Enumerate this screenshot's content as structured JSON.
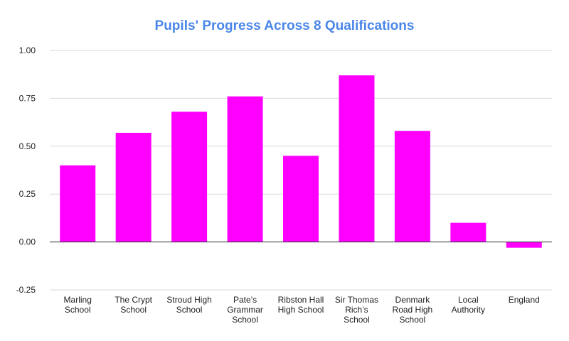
{
  "chart_data": {
    "type": "bar",
    "title": "Pupils' Progress Across 8 Qualifications",
    "xlabel": "",
    "ylabel": "",
    "categories": [
      [
        "Marling",
        "School"
      ],
      [
        "The Crypt",
        "School"
      ],
      [
        "Stroud High",
        "School"
      ],
      [
        "Pate’s",
        "Grammar",
        "School"
      ],
      [
        "Ribston Hall",
        "High School"
      ],
      [
        "Sir Thomas",
        "Rich’s",
        "School"
      ],
      [
        "Denmark",
        "Road High",
        "School"
      ],
      [
        "Local",
        "Authority"
      ],
      [
        "England"
      ]
    ],
    "values": [
      0.4,
      0.57,
      0.68,
      0.76,
      0.45,
      0.87,
      0.58,
      0.1,
      -0.03
    ],
    "ylim": [
      -0.25,
      1.0
    ],
    "yticks": [
      "1.00",
      "0.75",
      "0.50",
      "0.25",
      "0.00",
      "-0.25"
    ],
    "ytick_values": [
      1.0,
      0.75,
      0.5,
      0.25,
      0.0,
      -0.25
    ],
    "grid": true,
    "legend": "none"
  },
  "colors": {
    "bar": "#ff00ff",
    "title": "#4a86e8",
    "gridline": "#d9d9d9",
    "zero_line": "#333333",
    "text": "#222222"
  }
}
